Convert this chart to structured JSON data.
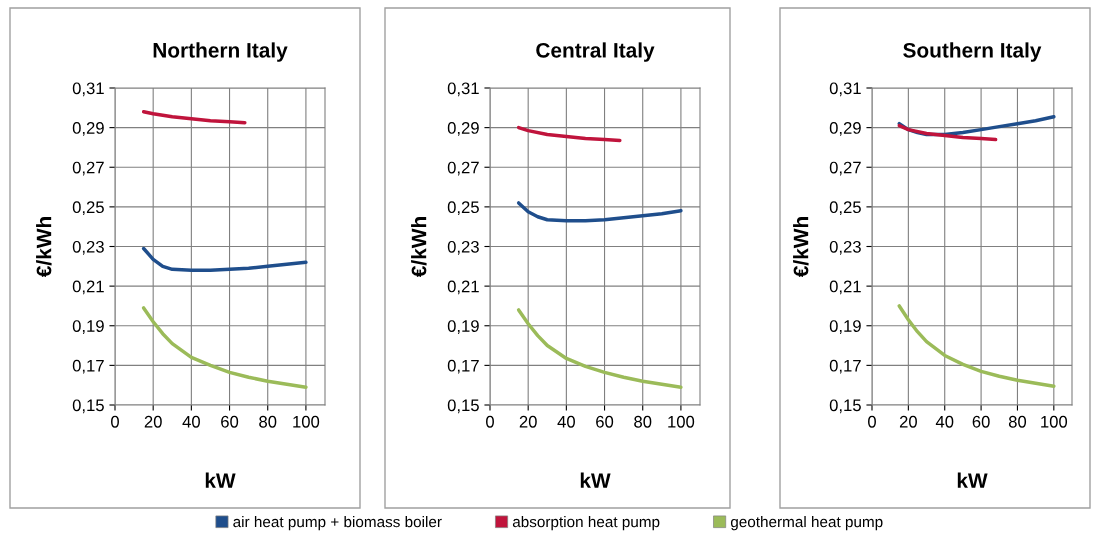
{
  "chart_data": [
    {
      "type": "line",
      "title": "Northern Italy",
      "xlabel": "kW",
      "ylabel": "€/kWh",
      "xlim": [
        0,
        110
      ],
      "xticks": [
        0,
        20,
        40,
        60,
        80,
        100
      ],
      "ylim": [
        0.15,
        0.31
      ],
      "yticks": [
        {
          "value": 0.15,
          "label": "0,15"
        },
        {
          "value": 0.17,
          "label": "0,17"
        },
        {
          "value": 0.19,
          "label": "0,19"
        },
        {
          "value": 0.21,
          "label": "0,21"
        },
        {
          "value": 0.23,
          "label": "0,23"
        },
        {
          "value": 0.25,
          "label": "0,25"
        },
        {
          "value": 0.27,
          "label": "0,27"
        },
        {
          "value": 0.29,
          "label": "0,29"
        },
        {
          "value": 0.31,
          "label": "0,31"
        }
      ],
      "grid": true,
      "legend": "bottom",
      "marker": "none",
      "line_style": "solid",
      "series": [
        {
          "name": "air heat pump + biomass boiler",
          "color": "#1f4e8c",
          "x": [
            15,
            20,
            25,
            30,
            40,
            50,
            60,
            70,
            80,
            90,
            100
          ],
          "values": [
            0.229,
            0.2235,
            0.22,
            0.2185,
            0.218,
            0.218,
            0.2185,
            0.219,
            0.22,
            0.221,
            0.222
          ]
        },
        {
          "name": "absorption heat pump",
          "color": "#c0143c",
          "x": [
            15,
            20,
            30,
            40,
            50,
            60,
            68
          ],
          "values": [
            0.298,
            0.297,
            0.2955,
            0.2945,
            0.2935,
            0.293,
            0.2925
          ]
        },
        {
          "name": "geothermal heat pump",
          "color": "#9bbb59",
          "x": [
            15,
            20,
            25,
            30,
            40,
            50,
            60,
            70,
            80,
            90,
            100
          ],
          "values": [
            0.199,
            0.192,
            0.186,
            0.181,
            0.174,
            0.17,
            0.1665,
            0.164,
            0.162,
            0.1605,
            0.159
          ]
        }
      ]
    },
    {
      "type": "line",
      "title": "Central Italy",
      "xlabel": "kW",
      "ylabel": "€/kWh",
      "xlim": [
        0,
        110
      ],
      "xticks": [
        0,
        20,
        40,
        60,
        80,
        100
      ],
      "ylim": [
        0.15,
        0.31
      ],
      "yticks": [
        {
          "value": 0.15,
          "label": "0,15"
        },
        {
          "value": 0.17,
          "label": "0,17"
        },
        {
          "value": 0.19,
          "label": "0,19"
        },
        {
          "value": 0.21,
          "label": "0,21"
        },
        {
          "value": 0.23,
          "label": "0,23"
        },
        {
          "value": 0.25,
          "label": "0,25"
        },
        {
          "value": 0.27,
          "label": "0,27"
        },
        {
          "value": 0.29,
          "label": "0,29"
        },
        {
          "value": 0.31,
          "label": "0,31"
        }
      ],
      "grid": true,
      "marker": "none",
      "line_style": "solid",
      "series": [
        {
          "color": "#1f4e8c",
          "x": [
            15,
            20,
            25,
            30,
            40,
            50,
            60,
            70,
            80,
            90,
            100
          ],
          "values": [
            0.252,
            0.2475,
            0.245,
            0.2435,
            0.243,
            0.243,
            0.2435,
            0.2445,
            0.2455,
            0.2465,
            0.248
          ]
        },
        {
          "color": "#c0143c",
          "x": [
            15,
            20,
            30,
            40,
            50,
            60,
            68
          ],
          "values": [
            0.29,
            0.2885,
            0.2865,
            0.2855,
            0.2845,
            0.284,
            0.2835
          ]
        },
        {
          "color": "#9bbb59",
          "x": [
            15,
            20,
            25,
            30,
            40,
            50,
            60,
            70,
            80,
            90,
            100
          ],
          "values": [
            0.198,
            0.191,
            0.185,
            0.18,
            0.1735,
            0.1695,
            0.1665,
            0.164,
            0.162,
            0.1605,
            0.159
          ]
        }
      ]
    },
    {
      "type": "line",
      "title": "Southern Italy",
      "xlabel": "kW",
      "ylabel": "€/kWh",
      "xlim": [
        0,
        110
      ],
      "xticks": [
        0,
        20,
        40,
        60,
        80,
        100
      ],
      "ylim": [
        0.15,
        0.31
      ],
      "yticks": [
        {
          "value": 0.15,
          "label": "0,15"
        },
        {
          "value": 0.17,
          "label": "0,17"
        },
        {
          "value": 0.19,
          "label": "0,19"
        },
        {
          "value": 0.21,
          "label": "0,21"
        },
        {
          "value": 0.23,
          "label": "0,23"
        },
        {
          "value": 0.25,
          "label": "0,25"
        },
        {
          "value": 0.27,
          "label": "0,27"
        },
        {
          "value": 0.29,
          "label": "0,29"
        },
        {
          "value": 0.31,
          "label": "0,31"
        }
      ],
      "grid": true,
      "marker": "none",
      "line_style": "solid",
      "series": [
        {
          "color": "#1f4e8c",
          "x": [
            15,
            20,
            25,
            30,
            40,
            50,
            60,
            70,
            80,
            90,
            100
          ],
          "values": [
            0.292,
            0.289,
            0.2875,
            0.2865,
            0.2865,
            0.2875,
            0.289,
            0.2905,
            0.292,
            0.2935,
            0.2955
          ]
        },
        {
          "color": "#c0143c",
          "x": [
            15,
            20,
            30,
            40,
            50,
            60,
            68
          ],
          "values": [
            0.291,
            0.289,
            0.287,
            0.286,
            0.285,
            0.2845,
            0.284
          ]
        },
        {
          "color": "#9bbb59",
          "x": [
            15,
            20,
            25,
            30,
            40,
            50,
            60,
            70,
            80,
            90,
            100
          ],
          "values": [
            0.2,
            0.193,
            0.187,
            0.182,
            0.175,
            0.1705,
            0.167,
            0.1645,
            0.1625,
            0.161,
            0.1595
          ]
        }
      ]
    }
  ]
}
